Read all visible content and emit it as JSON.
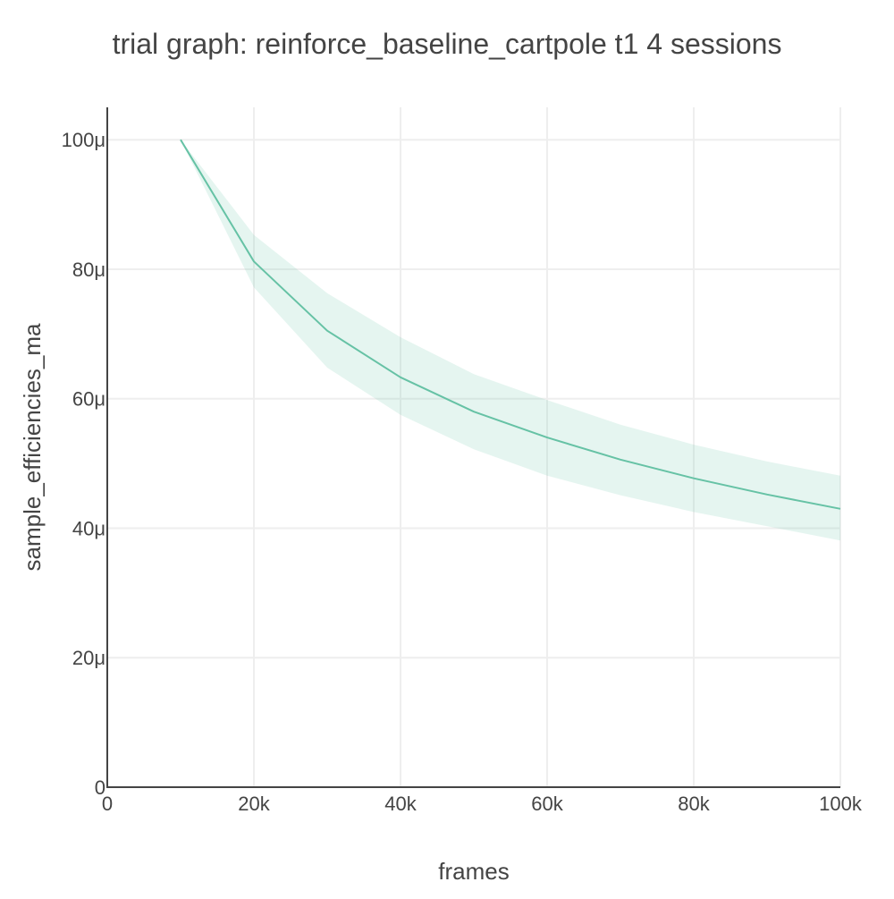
{
  "chart_data": {
    "type": "line",
    "title": "trial graph: reinforce_baseline_cartpole t1 4 sessions",
    "xlabel": "frames",
    "ylabel": "sample_efficiencies_ma",
    "xlim": [
      0,
      100000
    ],
    "ylim": [
      0,
      0.000105
    ],
    "x_ticks": [
      0,
      20000,
      40000,
      60000,
      80000,
      100000
    ],
    "x_tick_labels": [
      "0",
      "20k",
      "40k",
      "60k",
      "80k",
      "100k"
    ],
    "y_ticks": [
      0,
      2e-05,
      4e-05,
      6e-05,
      8e-05,
      0.0001
    ],
    "y_tick_labels": [
      "0",
      "20μ",
      "40μ",
      "60μ",
      "80μ",
      "100μ"
    ],
    "grid": true,
    "legend": false,
    "colors": {
      "line": "#66c2a5",
      "band": "rgba(102,194,165,0.17)",
      "grid": "#eeeeee",
      "axis": "#444444"
    },
    "series": [
      {
        "x": [
          10000,
          20000,
          30000,
          40000,
          50000,
          60000,
          70000,
          80000,
          90000,
          100000
        ],
        "y": [
          0.0001,
          8.12e-05,
          7.05e-05,
          6.33e-05,
          5.8e-05,
          5.4e-05,
          5.06e-05,
          4.77e-05,
          4.52e-05,
          4.3e-05
        ],
        "upper": [
          0.0001,
          8.53e-05,
          7.63e-05,
          6.95e-05,
          6.38e-05,
          5.98e-05,
          5.6e-05,
          5.29e-05,
          5.03e-05,
          4.81e-05
        ],
        "lower": [
          0.0001,
          7.72e-05,
          6.48e-05,
          5.75e-05,
          5.22e-05,
          4.81e-05,
          4.51e-05,
          4.25e-05,
          4.03e-05,
          3.81e-05
        ]
      }
    ]
  }
}
